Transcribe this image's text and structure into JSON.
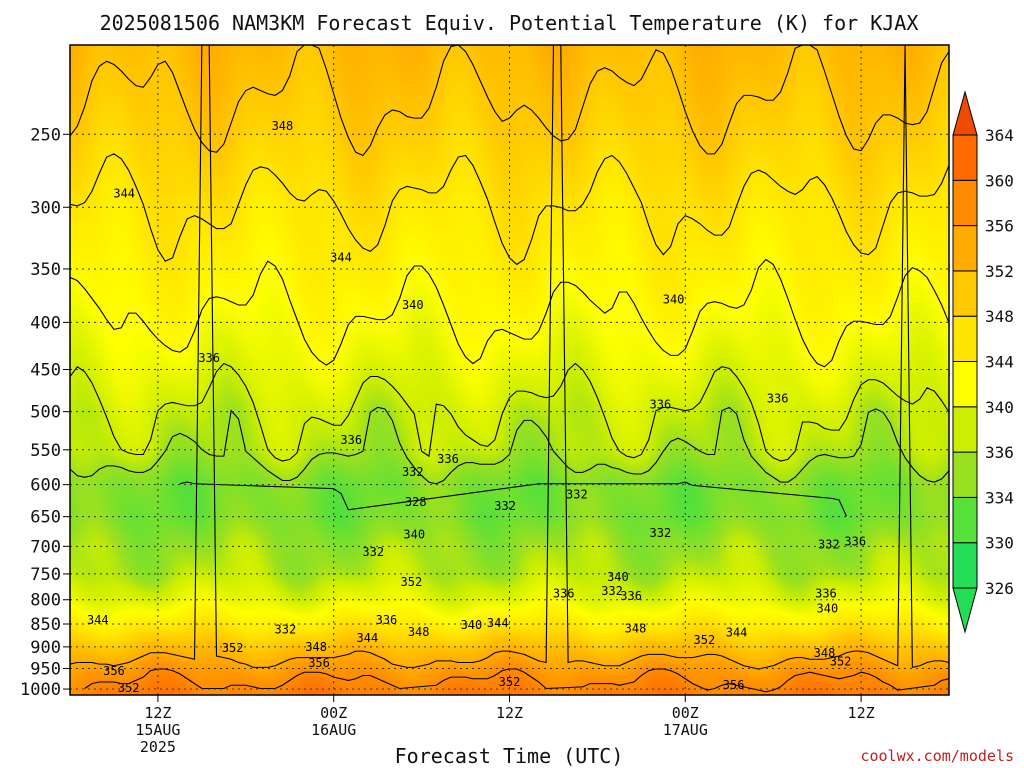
{
  "chart_data": {
    "type": "heatmap",
    "title": "2025081506 NAM3KM Forecast Equiv. Potential Temperature (K) for KJAX",
    "xlabel": "Forecast Time (UTC)",
    "ylabel": "",
    "x_ticks": [
      {
        "hour": 6,
        "lines": [
          "12Z",
          "15AUG",
          "2025"
        ]
      },
      {
        "hour": 18,
        "lines": [
          "00Z",
          "16AUG"
        ]
      },
      {
        "hour": 30,
        "lines": [
          "12Z"
        ]
      },
      {
        "hour": 42,
        "lines": [
          "00Z",
          "17AUG"
        ]
      },
      {
        "hour": 54,
        "lines": [
          "12Z"
        ]
      }
    ],
    "x_range_hours": [
      0,
      60
    ],
    "y_ticks_hpa": [
      250,
      300,
      350,
      400,
      450,
      500,
      550,
      600,
      650,
      700,
      750,
      800,
      850,
      900,
      950,
      1000
    ],
    "y_range_hpa": [
      200,
      1015
    ],
    "y_scale": "log",
    "grid": true,
    "colorbar": {
      "labels": [
        326,
        330,
        334,
        336,
        340,
        344,
        348,
        352,
        356,
        360,
        364
      ],
      "colors": [
        "#22dd55",
        "#55e03a",
        "#99e020",
        "#ccee00",
        "#ffff00",
        "#ffe600",
        "#ffc800",
        "#ffab00",
        "#ff8a00",
        "#ff6a00",
        "#ee4a00"
      ],
      "extend": "both"
    },
    "ground_color": "#a0522d",
    "profiles": [
      {
        "p": 200,
        "theta_e": 350
      },
      {
        "p": 250,
        "theta_e": 347
      },
      {
        "p": 300,
        "theta_e": 344
      },
      {
        "p": 350,
        "theta_e": 342
      },
      {
        "p": 400,
        "theta_e": 340
      },
      {
        "p": 450,
        "theta_e": 338
      },
      {
        "p": 500,
        "theta_e": 336
      },
      {
        "p": 550,
        "theta_e": 335
      },
      {
        "p": 600,
        "theta_e": 332
      },
      {
        "p": 650,
        "theta_e": 332
      },
      {
        "p": 700,
        "theta_e": 334
      },
      {
        "p": 750,
        "theta_e": 335
      },
      {
        "p": 800,
        "theta_e": 338
      },
      {
        "p": 850,
        "theta_e": 343
      },
      {
        "p": 900,
        "theta_e": 349
      },
      {
        "p": 950,
        "theta_e": 354
      },
      {
        "p": 1000,
        "theta_e": 357
      }
    ],
    "contour_labels": [
      {
        "t": 14.5,
        "p": 245,
        "text": "348"
      },
      {
        "t": 3.7,
        "p": 290,
        "text": "344"
      },
      {
        "t": 18.5,
        "p": 340,
        "text": "344"
      },
      {
        "t": 23.4,
        "p": 383,
        "text": "340"
      },
      {
        "t": 41.2,
        "p": 378,
        "text": "340"
      },
      {
        "t": 9.5,
        "p": 437,
        "text": "336"
      },
      {
        "t": 19.2,
        "p": 537,
        "text": "336"
      },
      {
        "t": 40.3,
        "p": 491,
        "text": "336"
      },
      {
        "t": 48.3,
        "p": 484,
        "text": "336"
      },
      {
        "t": 25.8,
        "p": 563,
        "text": "336"
      },
      {
        "t": 23.4,
        "p": 581,
        "text": "332"
      },
      {
        "t": 23.6,
        "p": 627,
        "text": "328"
      },
      {
        "t": 29.7,
        "p": 633,
        "text": "332"
      },
      {
        "t": 34.6,
        "p": 615,
        "text": "332"
      },
      {
        "t": 23.5,
        "p": 680,
        "text": "340"
      },
      {
        "t": 20.7,
        "p": 710,
        "text": "332"
      },
      {
        "t": 40.3,
        "p": 677,
        "text": "332"
      },
      {
        "t": 51.8,
        "p": 697,
        "text": "332"
      },
      {
        "t": 53.6,
        "p": 692,
        "text": "336"
      },
      {
        "t": 23.3,
        "p": 765,
        "text": "352"
      },
      {
        "t": 37.4,
        "p": 756,
        "text": "340"
      },
      {
        "t": 33.7,
        "p": 788,
        "text": "336"
      },
      {
        "t": 37.0,
        "p": 783,
        "text": "332"
      },
      {
        "t": 38.3,
        "p": 793,
        "text": "336"
      },
      {
        "t": 51.6,
        "p": 788,
        "text": "336"
      },
      {
        "t": 51.7,
        "p": 818,
        "text": "340"
      },
      {
        "t": 1.9,
        "p": 842,
        "text": "344"
      },
      {
        "t": 21.6,
        "p": 842,
        "text": "336"
      },
      {
        "t": 14.7,
        "p": 862,
        "text": "332"
      },
      {
        "t": 27.4,
        "p": 852,
        "text": "340"
      },
      {
        "t": 29.2,
        "p": 848,
        "text": "344"
      },
      {
        "t": 20.3,
        "p": 880,
        "text": "344"
      },
      {
        "t": 23.8,
        "p": 867,
        "text": "348"
      },
      {
        "t": 38.6,
        "p": 860,
        "text": "348"
      },
      {
        "t": 45.5,
        "p": 868,
        "text": "344"
      },
      {
        "t": 43.3,
        "p": 885,
        "text": "352"
      },
      {
        "t": 11.1,
        "p": 903,
        "text": "352"
      },
      {
        "t": 16.8,
        "p": 900,
        "text": "348"
      },
      {
        "t": 51.5,
        "p": 914,
        "text": "348"
      },
      {
        "t": 52.6,
        "p": 934,
        "text": "352"
      },
      {
        "t": 3.0,
        "p": 956,
        "text": "356"
      },
      {
        "t": 17.0,
        "p": 937,
        "text": "356"
      },
      {
        "t": 30.0,
        "p": 983,
        "text": "352"
      },
      {
        "t": 4.0,
        "p": 997,
        "text": "352"
      },
      {
        "t": 45.3,
        "p": 990,
        "text": "356"
      }
    ],
    "credit": "coolwx.com/models"
  }
}
